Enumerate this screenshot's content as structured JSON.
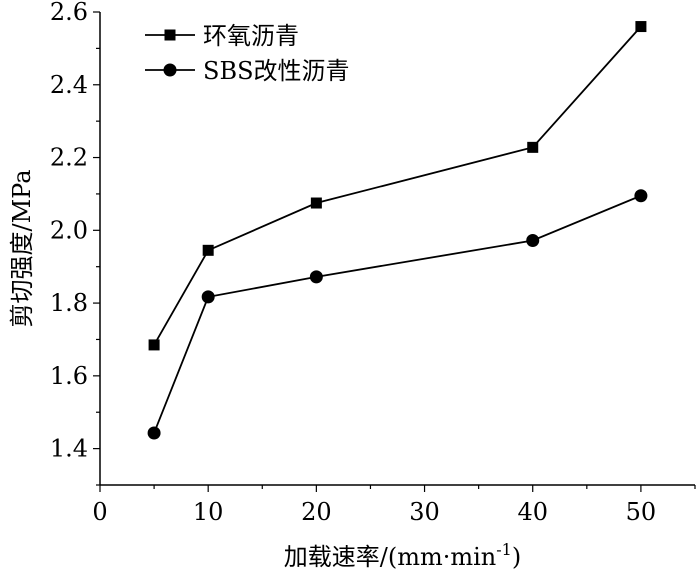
{
  "chart_data": {
    "type": "line",
    "title": "",
    "xlabel": "加载速率/(mm·min",
    "xlabel_sup": "-1",
    "xlabel_suffix": ")",
    "ylabel": "剪切强度/MPa",
    "xlim": [
      0,
      55
    ],
    "ylim": [
      1.3,
      2.6
    ],
    "x_ticks": [
      0,
      10,
      20,
      30,
      40,
      50
    ],
    "x_tick_labels": [
      "0",
      "10",
      "20",
      "30",
      "40",
      "50"
    ],
    "y_ticks": [
      1.4,
      1.6,
      1.8,
      2.0,
      2.2,
      2.4,
      2.6
    ],
    "y_tick_labels": [
      "1.4",
      "1.6",
      "1.8",
      "2.0",
      "2.2",
      "2.4",
      "2.6"
    ],
    "legend_position": "top-left",
    "grid": false,
    "series": [
      {
        "name": "环氧沥青",
        "marker": "square",
        "x": [
          5,
          10,
          20,
          40,
          50
        ],
        "values": [
          1.685,
          1.945,
          2.075,
          2.228,
          2.56
        ]
      },
      {
        "name": "SBS改性沥青",
        "marker": "circle",
        "x": [
          5,
          10,
          20,
          40,
          50
        ],
        "values": [
          1.443,
          1.817,
          1.872,
          1.972,
          2.095
        ]
      }
    ]
  }
}
